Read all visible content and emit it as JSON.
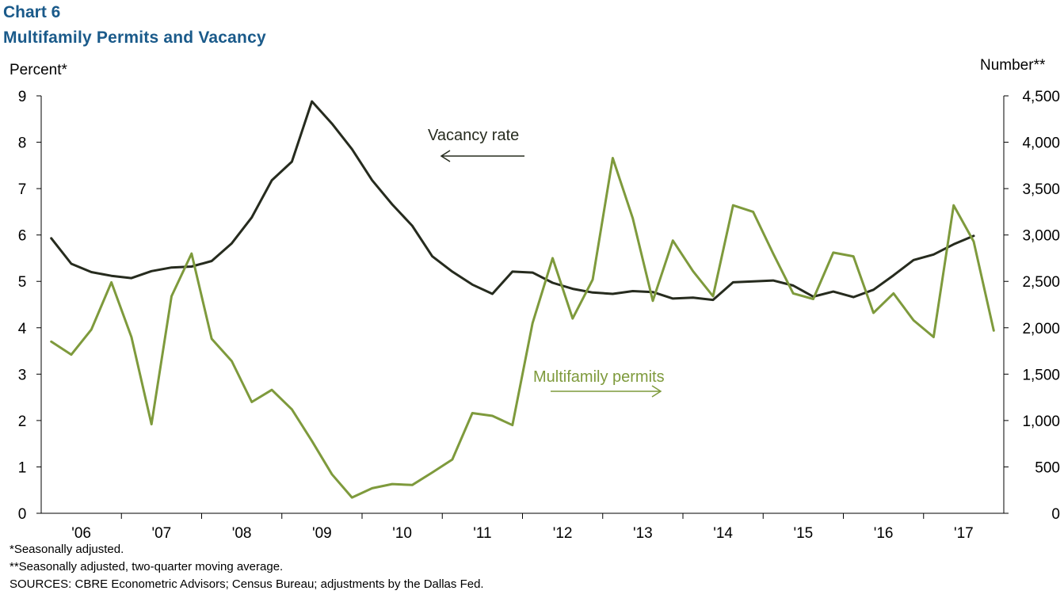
{
  "header": {
    "chart_label": "Chart 6",
    "title": "Multifamily  Permits and Vacancy"
  },
  "notes": [
    "*Seasonally adjusted.",
    "**Seasonally adjusted, two-quarter moving average.",
    "SOURCES: CBRE Econometric Advisors; Census Bureau; adjustments by the Dallas Fed."
  ],
  "colors": {
    "vacancy": "#262b1e",
    "permits": "#7e9a3c"
  },
  "chart_data": {
    "type": "line",
    "y_left_label": "Percent*",
    "y_right_label": "Number**",
    "y_left_range": [
      0,
      9
    ],
    "y_right_range": [
      0,
      4500
    ],
    "y_left_ticks": [
      "0",
      "1",
      "2",
      "3",
      "4",
      "5",
      "6",
      "7",
      "8",
      "9"
    ],
    "y_right_ticks": [
      "0",
      "500",
      "1,000",
      "1,500",
      "2,000",
      "2,500",
      "3,000",
      "3,500",
      "4,000",
      "4,500"
    ],
    "x_ticks": [
      "'06",
      "'07",
      "'08",
      "'09",
      "'10",
      "'11",
      "'12",
      "'13",
      "'14",
      "'15",
      "'16",
      "'17"
    ],
    "x_start_year": 2006,
    "grid": false,
    "annotations": [
      {
        "text": "Vacancy rate",
        "series": "Vacancy rate",
        "arrow": "left"
      },
      {
        "text": "Multifamily permits",
        "series": "Multifamily permits",
        "arrow": "right"
      }
    ],
    "series": [
      {
        "name": "Vacancy rate",
        "axis": "left",
        "values": [
          5.93,
          5.38,
          5.2,
          5.12,
          5.07,
          5.22,
          5.3,
          5.32,
          5.44,
          5.82,
          6.38,
          7.18,
          7.58,
          8.88,
          8.4,
          7.85,
          7.18,
          6.66,
          6.2,
          5.54,
          5.21,
          4.93,
          4.73,
          5.21,
          5.19,
          4.97,
          4.84,
          4.76,
          4.73,
          4.79,
          4.77,
          4.63,
          4.65,
          4.6,
          4.98,
          5.0,
          5.02,
          4.91,
          4.67,
          4.78,
          4.66,
          4.82,
          5.13,
          5.46,
          5.58,
          5.8,
          5.98
        ]
      },
      {
        "name": "Multifamily permits",
        "axis": "right",
        "values": [
          1850,
          1710,
          1980,
          2490,
          1900,
          960,
          2340,
          2800,
          1880,
          1640,
          1200,
          1330,
          1120,
          780,
          420,
          170,
          270,
          315,
          305,
          440,
          580,
          1080,
          1050,
          950,
          2050,
          2750,
          2100,
          2520,
          3830,
          3180,
          2290,
          2940,
          2610,
          2340,
          3320,
          3250,
          2800,
          2370,
          2310,
          2810,
          2770,
          2160,
          2370,
          2080,
          1900,
          3320,
          2930,
          1970
        ]
      }
    ]
  }
}
